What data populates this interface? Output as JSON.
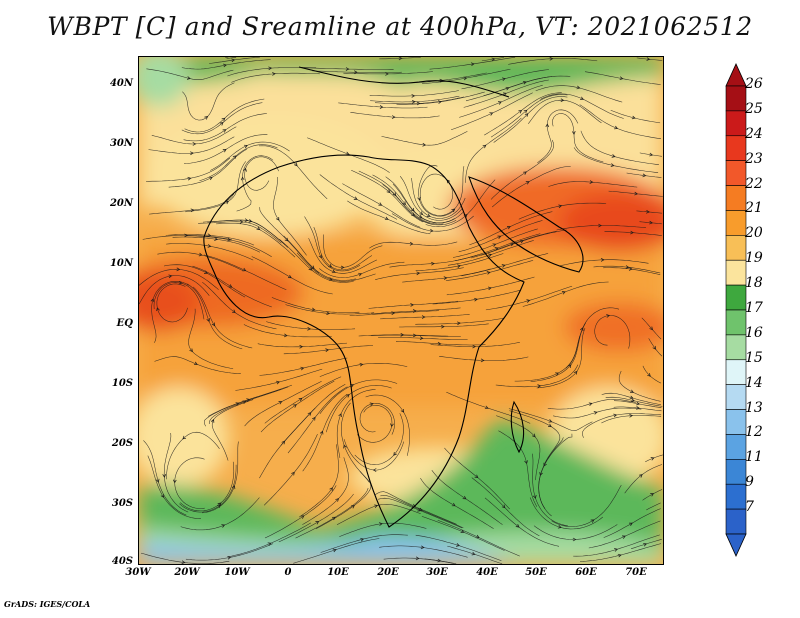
{
  "title": "WBPT [C] and Sreamline at 400hPa, VT: 2021062512",
  "footer": "GrADS: IGES/COLA",
  "lat_labels": [
    "40N",
    "30N",
    "20N",
    "10N",
    "EQ",
    "10S",
    "20S",
    "30S",
    "40S"
  ],
  "lon_labels": [
    "30W",
    "20W",
    "10W",
    "0",
    "10E",
    "20E",
    "30E",
    "40E",
    "50E",
    "60E",
    "70E"
  ],
  "colorbar": {
    "levels": [
      "26",
      "25",
      "24",
      "23",
      "22",
      "21",
      "20",
      "19",
      "18",
      "17",
      "16",
      "15",
      "14",
      "13",
      "12",
      "11",
      "9",
      "7"
    ],
    "colors": [
      "#a50f15",
      "#cb1a1a",
      "#e8381e",
      "#f2582a",
      "#f57c22",
      "#f89c2c",
      "#f8bf57",
      "#fbe49d",
      "#3ea83e",
      "#6fc36c",
      "#a6dca2",
      "#dff5f8",
      "#b5daf2",
      "#8ac2ec",
      "#5ba3e2",
      "#3b86d6",
      "#2c6fd0",
      "#2b62c9"
    ]
  },
  "map_colors": {
    "tropics_orange": "#f4a23c",
    "light_yellow": "#fbe39b",
    "hot_band": "#ee6b24",
    "green": "#5cb85a",
    "light_green": "#a6dca2",
    "blue": "#8ac2ec",
    "streamline": "#1a1a1a"
  }
}
